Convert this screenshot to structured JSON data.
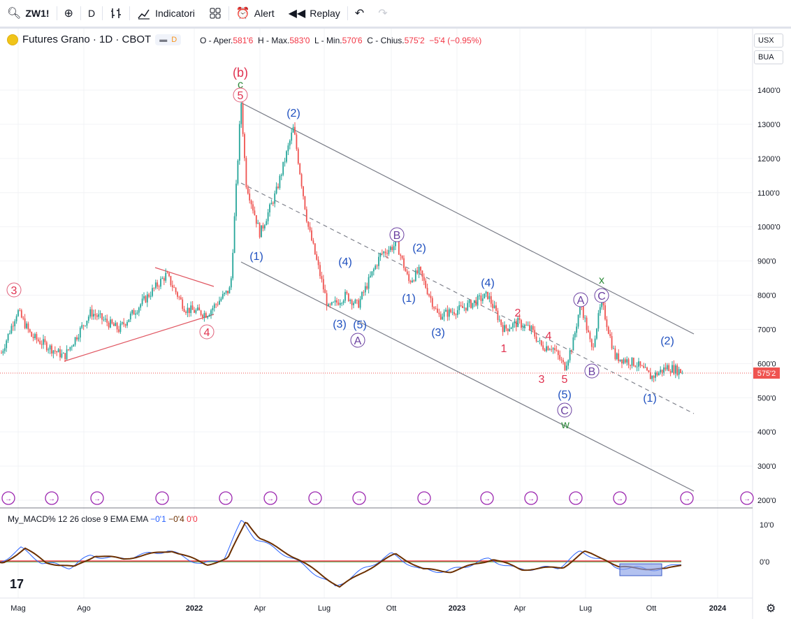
{
  "toolbar": {
    "symbol": "ZW1!",
    "interval": "D",
    "indicators": "Indicatori",
    "alert": "Alert",
    "replay": "Replay",
    "icons": [
      "search-icon",
      "plus-icon",
      "bar-style-icon",
      "indicators-icon",
      "layout-icon",
      "alert-icon",
      "replay-icon",
      "undo-icon",
      "redo-icon"
    ]
  },
  "header": {
    "title": "Futures Grano · 1D · CBOT",
    "status_letter": "D",
    "o_label": "O - Aper.",
    "o": "581'6",
    "h_label": "H - Max.",
    "h": "583'0",
    "l_label": "L - Min.",
    "l": "570'6",
    "c_label": "C - Chius.",
    "c": "575'2",
    "change": "−5'4 (−0.95%)"
  },
  "currency": {
    "usd": "USX",
    "unit": "BUA"
  },
  "price_axis": [
    "1400'0",
    "1300'0",
    "1200'0",
    "1100'0",
    "1000'0",
    "900'0",
    "800'0",
    "700'0",
    "600'0",
    "500'0",
    "400'0",
    "300'0",
    "200'0"
  ],
  "last_price": "575'2",
  "time_axis": [
    "Mag",
    "Ago",
    "2022",
    "Apr",
    "Lug",
    "Ott",
    "2023",
    "Apr",
    "Lug",
    "Ott",
    "2024"
  ],
  "macd": {
    "name": "My_MACD% 12 26 close 9 EMA EMA",
    "v1": "−0'1",
    "v2": "−0'4",
    "v3": "0'0",
    "axis": [
      "10'0",
      "0'0"
    ]
  },
  "wave_labels": {
    "b_big": "(b)",
    "c_green": "c",
    "five_circ": "5",
    "three_circ": "3",
    "four_circ": "4",
    "p2a": "(2)",
    "p1a": "(1)",
    "p4a": "(4)",
    "p3a": "(3)",
    "p5a": "(5)",
    "A1": "A",
    "B1": "B",
    "p2b": "(2)",
    "p1b": "(1)",
    "p3b": "(3)",
    "p4b": "(4)",
    "r2": "2",
    "r1": "1",
    "r4": "4",
    "r3": "3",
    "r5": "5",
    "p5b": "(5)",
    "C1": "C",
    "w": "w",
    "A2": "A",
    "C2": "C",
    "x": "x",
    "B2": "B",
    "p2c": "(2)",
    "p1c": "(1)"
  },
  "colors": {
    "up": "#26a69a",
    "down": "#ef5350",
    "blue_wave": "#1e4fbf",
    "purple": "#6a3fa0",
    "red_wave": "#e0314f",
    "green_wave": "#2e8b3a",
    "macd": "#2962ff",
    "signal": "#6b2f00",
    "zero_red": "#f23645",
    "zero_green": "#4caf50"
  }
}
